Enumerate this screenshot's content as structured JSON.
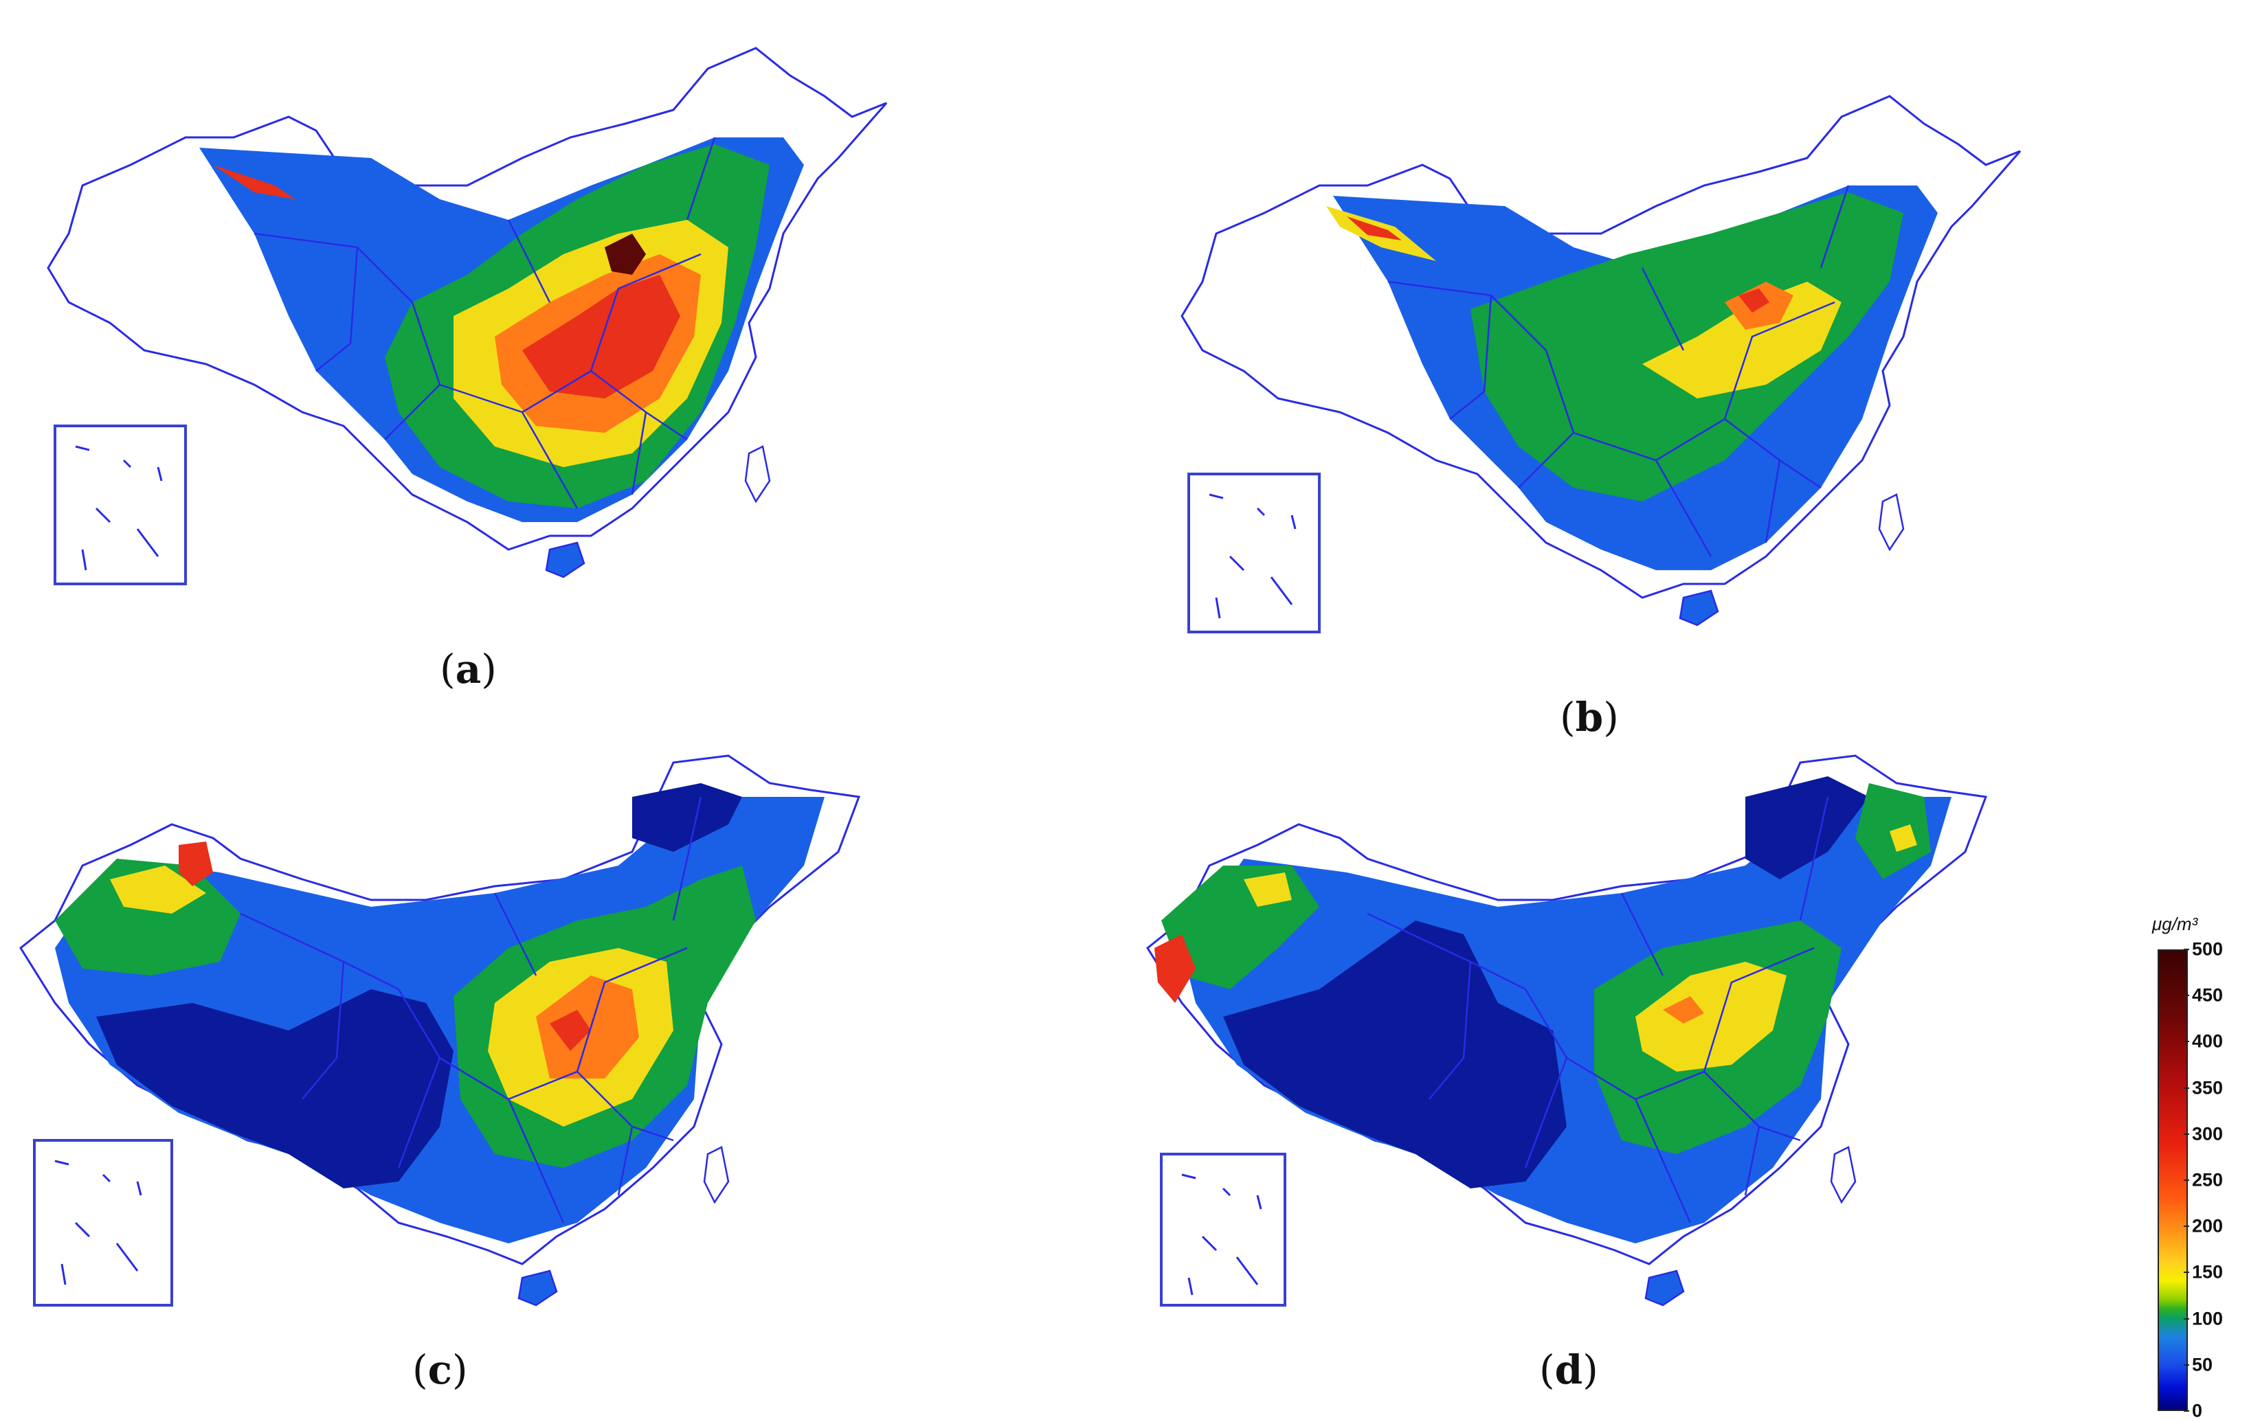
{
  "panels": [
    {
      "id": "a",
      "caption_open": "(",
      "caption_letter": "a",
      "caption_close": ")"
    },
    {
      "id": "b",
      "caption_open": "(",
      "caption_letter": "b",
      "caption_close": ")"
    },
    {
      "id": "c",
      "caption_open": "(",
      "caption_letter": "c",
      "caption_close": ")"
    },
    {
      "id": "d",
      "caption_open": "(",
      "caption_letter": "d",
      "caption_close": ")"
    }
  ],
  "legend": {
    "unit_label": "μg/m³",
    "ticks": [
      "0",
      "50",
      "100",
      "150",
      "200",
      "250",
      "300",
      "350",
      "400",
      "450",
      "500"
    ],
    "range": [
      0,
      500
    ],
    "colors": {
      "0": "#00007a",
      "50": "#1a4fe8",
      "100": "#30b020",
      "150": "#f5f000",
      "200": "#ff9a18",
      "300": "#e82010",
      "500": "#3a0202"
    }
  },
  "colors": {
    "boundary": "#2a2ae6",
    "very_low": "#0a1a9a",
    "low": "#1a60e6",
    "moderate": "#12a040",
    "elevated": "#f2dc18",
    "high": "#ff7a18",
    "very_high": "#e8301a",
    "extreme": "#5a0808"
  }
}
